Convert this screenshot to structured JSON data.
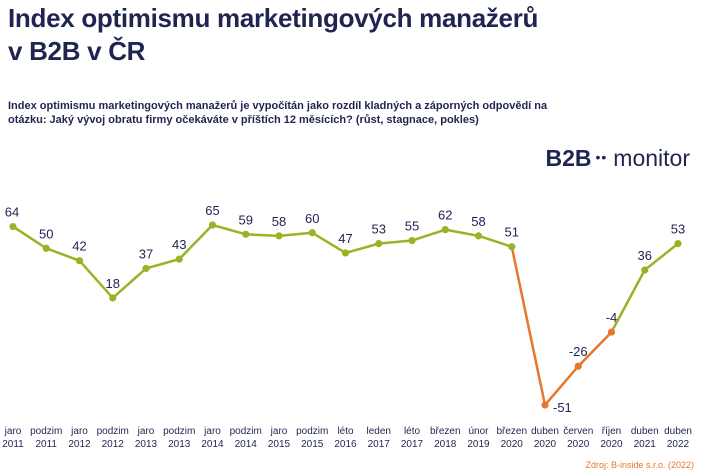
{
  "header": {
    "title_line1": "Index optimismu marketingových manažerů",
    "title_line2": "v B2B v ČR",
    "subtitle": "Index optimismu marketingových manažerů je vypočítán jako rozdíl kladných a záporných odpovědí na otázku: Jaký vývoj obratu firmy očekáváte v příštích 12 měsících? (růst, stagnace, pokles)"
  },
  "logo": {
    "b2b": "B2B",
    "dots": "••",
    "text": "monitor"
  },
  "source": "Zdroj: B-inside s.r.o. (2022)",
  "colors": {
    "green": "#97b426",
    "orange": "#e8762b",
    "text": "#1f2450"
  },
  "chart_data": {
    "type": "line",
    "categories": [
      [
        "jaro",
        "2011"
      ],
      [
        "podzim",
        "2011"
      ],
      [
        "jaro",
        "2012"
      ],
      [
        "podzim",
        "2012"
      ],
      [
        "jaro",
        "2013"
      ],
      [
        "podzim",
        "2013"
      ],
      [
        "jaro",
        "2014"
      ],
      [
        "podzim",
        "2014"
      ],
      [
        "jaro",
        "2015"
      ],
      [
        "podzim",
        "2015"
      ],
      [
        "léto",
        "2016"
      ],
      [
        "leden",
        "2017"
      ],
      [
        "léto",
        "2017"
      ],
      [
        "březen",
        "2018"
      ],
      [
        "únor",
        "2019"
      ],
      [
        "březen",
        "2020"
      ],
      [
        "duben",
        "2020"
      ],
      [
        "červen",
        "2020"
      ],
      [
        "říjen",
        "2020"
      ],
      [
        "duben",
        "2021"
      ],
      [
        "duben",
        "2022"
      ]
    ],
    "values": [
      64,
      50,
      42,
      18,
      37,
      43,
      65,
      59,
      58,
      60,
      47,
      53,
      55,
      62,
      58,
      51,
      -51,
      -26,
      -4,
      36,
      53
    ],
    "highlight_segment": {
      "from_index": 15,
      "to_index": 18,
      "color": "#e8762b"
    },
    "ylim": [
      -60,
      75
    ],
    "xlabel": "",
    "ylabel": "",
    "grid": false
  }
}
